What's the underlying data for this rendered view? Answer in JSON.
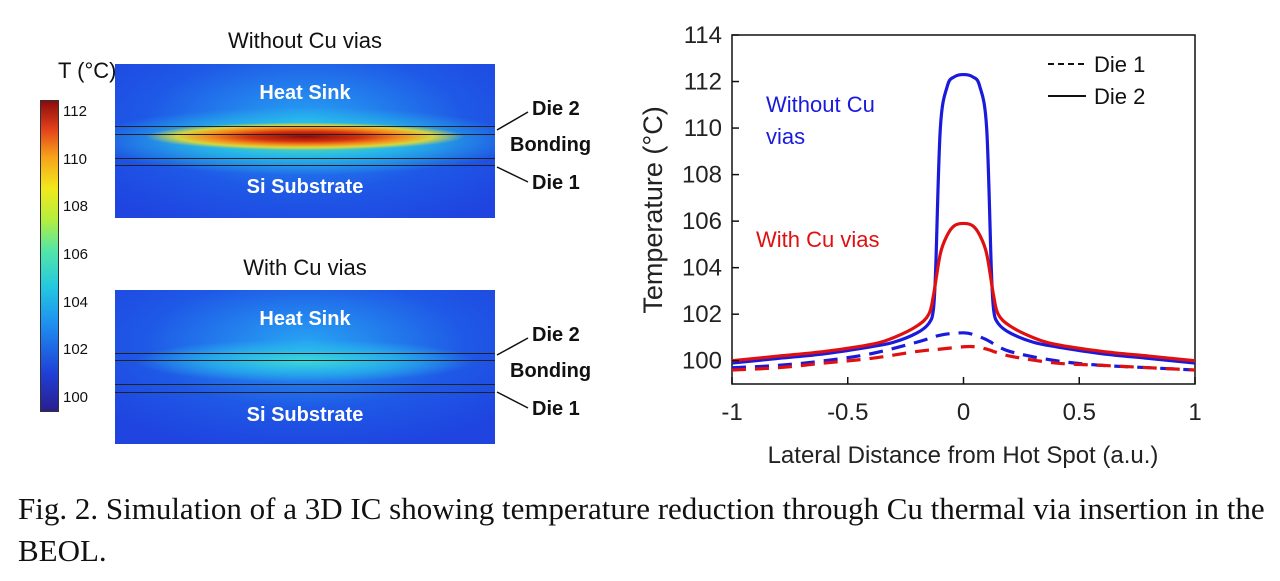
{
  "thermal_maps": {
    "colorbar": {
      "title": "T (°C)",
      "ticks": [
        100,
        102,
        104,
        106,
        108,
        110,
        112
      ],
      "range": [
        99.5,
        112.5
      ]
    },
    "panels": [
      {
        "title": "Without Cu vias",
        "region_labels": {
          "top": "Heat Sink",
          "bottom": "Si Substrate"
        },
        "layer_labels": {
          "die2": "Die 2",
          "bonding": "Bonding",
          "die1": "Die 1"
        },
        "peak_temperature": 112.3
      },
      {
        "title": "With Cu vias",
        "region_labels": {
          "top": "Heat Sink",
          "bottom": "Si Substrate"
        },
        "layer_labels": {
          "die2": "Die 2",
          "bonding": "Bonding",
          "die1": "Die 1"
        },
        "peak_temperature": 105.9
      }
    ]
  },
  "chart_data": {
    "type": "line",
    "title": "",
    "xlabel": "Lateral Distance from Hot Spot (a.u.)",
    "ylabel": "Temperature (°C)",
    "xlim": [
      -1,
      1
    ],
    "ylim": [
      99,
      114
    ],
    "xticks": [
      -1,
      -0.5,
      0,
      0.5,
      1
    ],
    "xtick_labels": [
      "-1",
      "-0.5",
      "0",
      "0.5",
      "1"
    ],
    "yticks": [
      100,
      102,
      104,
      106,
      108,
      110,
      112,
      114
    ],
    "grid": false,
    "legend": {
      "position": "top-right",
      "entries": [
        {
          "label": "Die 1",
          "style": "dashed"
        },
        {
          "label": "Die 2",
          "style": "solid"
        }
      ]
    },
    "annotations": [
      {
        "text": "Without Cu vias",
        "color": "#1a1adc"
      },
      {
        "text": "With Cu vias",
        "color": "#e01010"
      }
    ],
    "series": [
      {
        "case": "Without Cu vias",
        "die": "Die 2",
        "color": "#1a1adc",
        "style": "solid",
        "x": [
          -1,
          -0.8,
          -0.6,
          -0.4,
          -0.3,
          -0.2,
          -0.15,
          -0.13,
          -0.12,
          -0.1,
          -0.07,
          -0.04,
          0,
          0.04,
          0.07,
          0.1,
          0.12,
          0.13,
          0.15,
          0.2,
          0.3,
          0.4,
          0.6,
          0.8,
          1
        ],
        "y": [
          99.9,
          100.1,
          100.3,
          100.6,
          100.8,
          101.2,
          101.6,
          102.2,
          104.0,
          110.0,
          111.8,
          112.2,
          112.3,
          112.2,
          111.8,
          110.0,
          104.0,
          102.2,
          101.6,
          101.2,
          100.8,
          100.6,
          100.3,
          100.1,
          99.9
        ]
      },
      {
        "case": "With Cu vias",
        "die": "Die 2",
        "color": "#e01010",
        "style": "solid",
        "x": [
          -1,
          -0.8,
          -0.6,
          -0.4,
          -0.3,
          -0.2,
          -0.15,
          -0.13,
          -0.1,
          -0.07,
          -0.04,
          0,
          0.04,
          0.07,
          0.1,
          0.13,
          0.15,
          0.2,
          0.3,
          0.4,
          0.6,
          0.8,
          1
        ],
        "y": [
          100.0,
          100.2,
          100.4,
          100.7,
          101.0,
          101.5,
          102.0,
          102.8,
          104.6,
          105.4,
          105.8,
          105.9,
          105.8,
          105.4,
          104.6,
          102.8,
          102.0,
          101.5,
          101.0,
          100.7,
          100.4,
          100.2,
          100.0
        ]
      },
      {
        "case": "Without Cu vias",
        "die": "Die 1",
        "color": "#1a1adc",
        "style": "dashed",
        "x": [
          -1,
          -0.8,
          -0.6,
          -0.4,
          -0.2,
          -0.1,
          0,
          0.05,
          0.1,
          0.2,
          0.4,
          0.6,
          0.8,
          1
        ],
        "y": [
          99.7,
          99.8,
          100.0,
          100.3,
          100.8,
          101.1,
          101.2,
          101.1,
          100.9,
          100.4,
          100.0,
          99.8,
          99.7,
          99.6
        ]
      },
      {
        "case": "With Cu vias",
        "die": "Die 1",
        "color": "#e01010",
        "style": "dashed",
        "x": [
          -1,
          -0.8,
          -0.6,
          -0.4,
          -0.2,
          -0.1,
          0,
          0.05,
          0.1,
          0.2,
          0.4,
          0.6,
          0.8,
          1
        ],
        "y": [
          99.6,
          99.7,
          99.9,
          100.1,
          100.4,
          100.5,
          100.6,
          100.6,
          100.5,
          100.2,
          99.9,
          99.8,
          99.7,
          99.6
        ]
      }
    ]
  },
  "caption": "Fig. 2. Simulation of a 3D IC showing temperature reduction through Cu thermal via insertion in the BEOL."
}
